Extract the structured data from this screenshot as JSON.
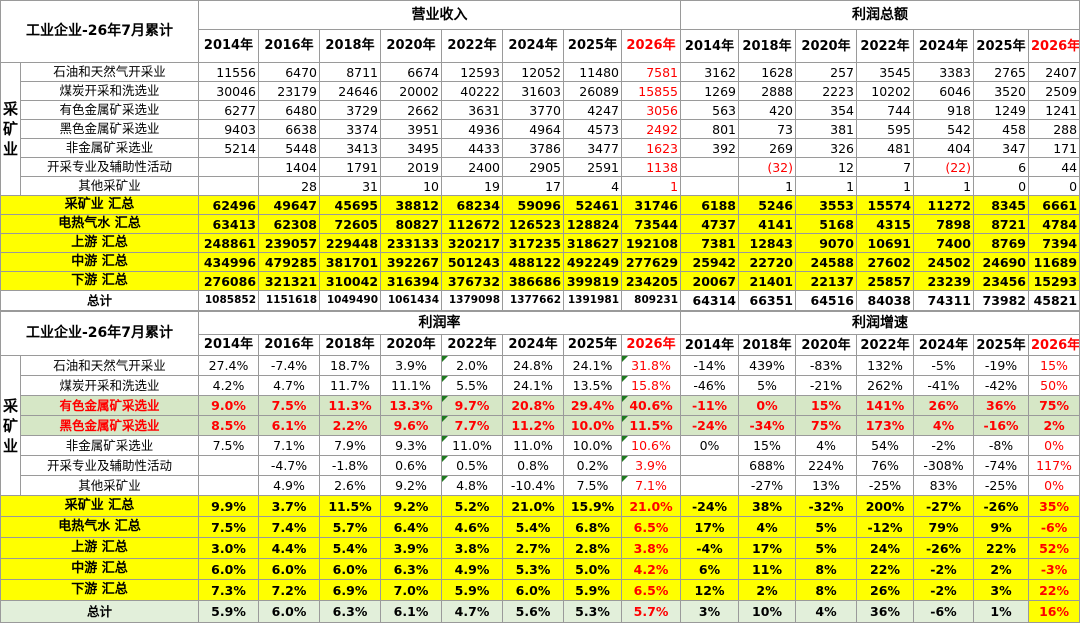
{
  "t1": {
    "title": "工业企业-26年7月累计",
    "group_revenue": "营业收入",
    "group_profit": "利润总额",
    "rev_years": [
      "2014年",
      "2016年",
      "2018年",
      "2020年",
      "2022年",
      "2024年",
      "2025年",
      "2026年"
    ],
    "profit_years": [
      "2014年",
      "2018年",
      "2020年",
      "2022年",
      "2024年",
      "2025年",
      "2026年"
    ],
    "side": "采矿业",
    "rows": [
      {
        "label": "石油和天然气开采业",
        "rev": [
          "11556",
          "6470",
          "8711",
          "6674",
          "12593",
          "12052",
          "11480",
          "7581"
        ],
        "profit": [
          "3162",
          "1628",
          "257",
          "3545",
          "3383",
          "2765",
          "2407"
        ]
      },
      {
        "label": "煤炭开采和洗选业",
        "rev": [
          "30046",
          "23179",
          "24646",
          "20002",
          "40222",
          "31603",
          "26089",
          "15855"
        ],
        "profit": [
          "1269",
          "2888",
          "2223",
          "10202",
          "6046",
          "3520",
          "2509"
        ]
      },
      {
        "label": "有色金属矿采选业",
        "rev": [
          "6277",
          "6480",
          "3729",
          "2662",
          "3631",
          "3770",
          "4247",
          "3056"
        ],
        "profit": [
          "563",
          "420",
          "354",
          "744",
          "918",
          "1249",
          "1241"
        ]
      },
      {
        "label": "黑色金属矿采选业",
        "rev": [
          "9403",
          "6638",
          "3374",
          "3951",
          "4936",
          "4964",
          "4573",
          "2492"
        ],
        "profit": [
          "801",
          "73",
          "381",
          "595",
          "542",
          "458",
          "288"
        ]
      },
      {
        "label": "非金属矿采选业",
        "rev": [
          "5214",
          "5448",
          "3413",
          "3495",
          "4433",
          "3786",
          "3477",
          "1623"
        ],
        "profit": [
          "392",
          "269",
          "326",
          "481",
          "404",
          "347",
          "171"
        ]
      },
      {
        "label": "开采专业及辅助性活动",
        "rev": [
          "",
          "1404",
          "1791",
          "2019",
          "2400",
          "2905",
          "2591",
          "1138"
        ],
        "profit": [
          "",
          "(32)",
          "12",
          "7",
          "(22)",
          "6",
          "44"
        ]
      },
      {
        "label": "其他采矿业",
        "rev": [
          "",
          "28",
          "31",
          "10",
          "19",
          "17",
          "4",
          "1"
        ],
        "profit": [
          "",
          "1",
          "1",
          "1",
          "1",
          "0",
          "0"
        ]
      }
    ],
    "summary": [
      {
        "label": "采矿业 汇总",
        "rev": [
          "62496",
          "49647",
          "45695",
          "38812",
          "68234",
          "59096",
          "52461",
          "31746"
        ],
        "profit": [
          "6188",
          "5246",
          "3553",
          "15574",
          "11272",
          "8345",
          "6661"
        ]
      },
      {
        "label": "电热气水 汇总",
        "rev": [
          "63413",
          "62308",
          "72605",
          "80827",
          "112672",
          "126523",
          "128824",
          "73544"
        ],
        "profit": [
          "4737",
          "4141",
          "5168",
          "4315",
          "7898",
          "8721",
          "4784"
        ]
      },
      {
        "label": "上游 汇总",
        "rev": [
          "248861",
          "239057",
          "229448",
          "233133",
          "320217",
          "317235",
          "318627",
          "192108"
        ],
        "profit": [
          "7381",
          "12843",
          "9070",
          "10691",
          "7400",
          "8769",
          "7394"
        ]
      },
      {
        "label": "中游 汇总",
        "rev": [
          "434996",
          "479285",
          "381701",
          "392267",
          "501243",
          "488122",
          "492249",
          "277629"
        ],
        "profit": [
          "25942",
          "22720",
          "24588",
          "27602",
          "24502",
          "24690",
          "11689"
        ]
      },
      {
        "label": "下游 汇总",
        "rev": [
          "276086",
          "321321",
          "310042",
          "316394",
          "376732",
          "386686",
          "399819",
          "234205"
        ],
        "profit": [
          "20067",
          "21401",
          "22137",
          "25857",
          "23239",
          "23456",
          "15293"
        ]
      }
    ],
    "total": {
      "label": "总计",
      "rev": [
        "1085852",
        "1151618",
        "1049490",
        "1061434",
        "1379098",
        "1377662",
        "1391981",
        "809231"
      ],
      "profit": [
        "64314",
        "66351",
        "64516",
        "84038",
        "74311",
        "73982",
        "45821"
      ]
    }
  },
  "t2": {
    "title": "工业企业-26年7月累计",
    "group_margin": "利润率",
    "group_growth": "利润增速",
    "margin_years": [
      "2014年",
      "2016年",
      "2018年",
      "2020年",
      "2022年",
      "2024年",
      "2025年",
      "2026年"
    ],
    "growth_years": [
      "2014年",
      "2018年",
      "2020年",
      "2022年",
      "2024年",
      "2025年",
      "2026年"
    ],
    "side": "采矿业",
    "rows": [
      {
        "label": "石油和天然气开采业",
        "margin": [
          "27.4%",
          "-7.4%",
          "18.7%",
          "3.9%",
          "2.0%",
          "24.8%",
          "24.1%",
          "31.8%"
        ],
        "growth": [
          "-14%",
          "439%",
          "-83%",
          "132%",
          "-5%",
          "-19%",
          "15%"
        ]
      },
      {
        "label": "煤炭开采和洗选业",
        "margin": [
          "4.2%",
          "4.7%",
          "11.7%",
          "11.1%",
          "5.5%",
          "24.1%",
          "13.5%",
          "15.8%"
        ],
        "growth": [
          "-46%",
          "5%",
          "-21%",
          "262%",
          "-41%",
          "-42%",
          "50%"
        ]
      },
      {
        "label": "有色金属矿采选业",
        "margin": [
          "9.0%",
          "7.5%",
          "11.3%",
          "13.3%",
          "9.7%",
          "20.8%",
          "29.4%",
          "40.6%"
        ],
        "growth": [
          "-11%",
          "0%",
          "15%",
          "141%",
          "26%",
          "36%",
          "75%"
        ]
      },
      {
        "label": "黑色金属矿采选业",
        "margin": [
          "8.5%",
          "6.1%",
          "2.2%",
          "9.6%",
          "7.7%",
          "11.2%",
          "10.0%",
          "11.5%"
        ],
        "growth": [
          "-24%",
          "-34%",
          "75%",
          "173%",
          "4%",
          "-16%",
          "2%"
        ]
      },
      {
        "label": "非金属矿采选业",
        "margin": [
          "7.5%",
          "7.1%",
          "7.9%",
          "9.3%",
          "11.0%",
          "11.0%",
          "10.0%",
          "10.6%"
        ],
        "growth": [
          "0%",
          "15%",
          "4%",
          "54%",
          "-2%",
          "-8%",
          "0%"
        ]
      },
      {
        "label": "开采专业及辅助性活动",
        "margin": [
          "",
          "-4.7%",
          "-1.8%",
          "0.6%",
          "0.5%",
          "0.8%",
          "0.2%",
          "3.9%"
        ],
        "growth": [
          "",
          "688%",
          "224%",
          "76%",
          "-308%",
          "-74%",
          "117%"
        ]
      },
      {
        "label": "其他采矿业",
        "margin": [
          "",
          "4.9%",
          "2.6%",
          "9.2%",
          "4.8%",
          "-10.4%",
          "7.5%",
          "7.1%"
        ],
        "growth": [
          "",
          "-27%",
          "13%",
          "-25%",
          "83%",
          "-25%",
          "0%"
        ]
      }
    ],
    "summary": [
      {
        "label": "采矿业 汇总",
        "margin": [
          "9.9%",
          "3.7%",
          "11.5%",
          "9.2%",
          "5.2%",
          "21.0%",
          "15.9%",
          "21.0%"
        ],
        "growth": [
          "-24%",
          "38%",
          "-32%",
          "200%",
          "-27%",
          "-26%",
          "35%"
        ]
      },
      {
        "label": "电热气水 汇总",
        "margin": [
          "7.5%",
          "7.4%",
          "5.7%",
          "6.4%",
          "4.6%",
          "5.4%",
          "6.8%",
          "6.5%"
        ],
        "growth": [
          "17%",
          "4%",
          "5%",
          "-12%",
          "79%",
          "9%",
          "-6%"
        ]
      },
      {
        "label": "上游 汇总",
        "margin": [
          "3.0%",
          "4.4%",
          "5.4%",
          "3.9%",
          "3.8%",
          "2.7%",
          "2.8%",
          "3.8%"
        ],
        "growth": [
          "-4%",
          "17%",
          "5%",
          "24%",
          "-26%",
          "22%",
          "52%"
        ]
      },
      {
        "label": "中游 汇总",
        "margin": [
          "6.0%",
          "6.0%",
          "6.0%",
          "6.3%",
          "4.9%",
          "5.3%",
          "5.0%",
          "4.2%"
        ],
        "growth": [
          "6%",
          "11%",
          "8%",
          "22%",
          "-2%",
          "2%",
          "-3%"
        ]
      },
      {
        "label": "下游 汇总",
        "margin": [
          "7.3%",
          "7.2%",
          "6.9%",
          "7.0%",
          "5.9%",
          "6.0%",
          "5.9%",
          "6.5%"
        ],
        "growth": [
          "12%",
          "2%",
          "8%",
          "26%",
          "-2%",
          "3%",
          "22%"
        ]
      }
    ],
    "total": {
      "label": "总计",
      "margin": [
        "5.9%",
        "6.0%",
        "6.3%",
        "6.1%",
        "4.7%",
        "5.6%",
        "5.3%",
        "5.7%"
      ],
      "growth": [
        "3%",
        "10%",
        "4%",
        "36%",
        "-6%",
        "1%",
        "16%"
      ]
    }
  },
  "colors": {
    "highlight": "#ff0000",
    "summary_bg": "#ffff00",
    "green_bg": "#d6e7c6",
    "total_bg": "#e2efda"
  }
}
